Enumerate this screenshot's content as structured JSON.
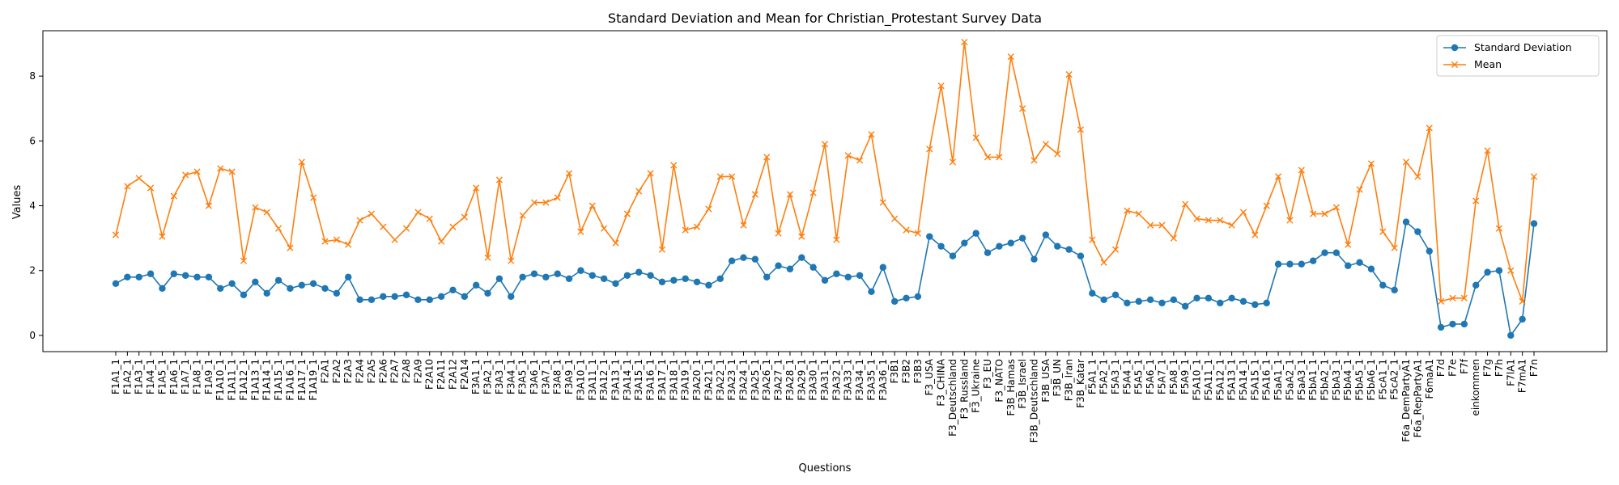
{
  "chart_data": {
    "type": "line",
    "title": "Standard Deviation and Mean for Christian_Protestant Survey Data",
    "xlabel": "Questions",
    "ylabel": "Values",
    "ylim": [
      -0.5,
      9.4
    ],
    "yticks": [
      0,
      2,
      4,
      6,
      8
    ],
    "grid": false,
    "legend_position": "top-right",
    "categories": [
      "F1A1_1",
      "F1A2_1",
      "F1A3_1",
      "F1A4_1",
      "F1A5_1",
      "F1A6_1",
      "F1A7_1",
      "F1A8_1",
      "F1A9_1",
      "F1A10_1",
      "F1A11_1",
      "F1A12_1",
      "F1A13_1",
      "F1A14_1",
      "F1A15_1",
      "F1A16_1",
      "F1A17_1",
      "F1A19_1",
      "F2A1",
      "F2A2",
      "F2A3",
      "F2A4",
      "F2A5",
      "F2A6",
      "F2A7",
      "F2A8",
      "F2A9",
      "F2A10",
      "F2A11",
      "F2A12",
      "F2A14",
      "F3A1_1",
      "F3A2_1",
      "F3A3_1",
      "F3A4_1",
      "F3A5_1",
      "F3A6_1",
      "F3A7_1",
      "F3A8_1",
      "F3A9_1",
      "F3A10_1",
      "F3A11_1",
      "F3A12_1",
      "F3A13_1",
      "F3A14_1",
      "F3A15_1",
      "F3A16_1",
      "F3A17_1",
      "F3A18_1",
      "F3A19_1",
      "F3A20_1",
      "F3A21_1",
      "F3A22_1",
      "F3A23_1",
      "F3A24_1",
      "F3A25_1",
      "F3A26_1",
      "F3A27_1",
      "F3A28_1",
      "F3A29_1",
      "F3A30_1",
      "F3A31_1",
      "F3A32_1",
      "F3A33_1",
      "F3A34_1",
      "F3A35_1",
      "F3A36_1",
      "F3B1",
      "F3B2",
      "F3B3",
      "F3_USA",
      "F3_CHINA",
      "F3_Deutschland",
      "F3_Russland",
      "F3_Ukraine",
      "F3_EU",
      "F3_NATO",
      "F3B_Hamas",
      "F3B_Israel",
      "F3B_Deutschland",
      "F3B_USA",
      "F3B_UN",
      "F3B_Iran",
      "F3B_Katar",
      "F5A1_1",
      "F5A2_1",
      "F5A3_1",
      "F5A4_1",
      "F5A5_1",
      "F5A6_1",
      "F5A7_1",
      "F5A8_1",
      "F5A9_1",
      "F5A10_1",
      "F5A11_1",
      "F5A12_1",
      "F5A13_1",
      "F5A14_1",
      "F5A15_1",
      "F5A16_1",
      "F5aA1_1",
      "F5aA2_1",
      "F5aA3_1",
      "F5bA1_1",
      "F5bA2_1",
      "F5bA3_1",
      "F5bA4_1",
      "F5bA5_1",
      "F5bA6_1",
      "F5cA1_1",
      "F5cA2_1",
      "F6a_DemPartyA1",
      "F6a_RepPartyA1",
      "F6maA1",
      "F7d",
      "F7e",
      "F7f",
      "einkommen",
      "F7g",
      "F7h",
      "F7lA1",
      "F7mA1",
      "F7n"
    ],
    "series": [
      {
        "name": "Standard Deviation",
        "color": "#1f77b4",
        "marker": "circle",
        "values": [
          1.6,
          1.8,
          1.8,
          1.9,
          1.45,
          1.9,
          1.85,
          1.8,
          1.8,
          1.45,
          1.6,
          1.25,
          1.65,
          1.3,
          1.7,
          1.45,
          1.55,
          1.6,
          1.45,
          1.3,
          1.8,
          1.1,
          1.1,
          1.2,
          1.2,
          1.25,
          1.1,
          1.1,
          1.2,
          1.4,
          1.2,
          1.55,
          1.3,
          1.75,
          1.2,
          1.8,
          1.9,
          1.8,
          1.9,
          1.75,
          2.0,
          1.85,
          1.75,
          1.6,
          1.85,
          1.95,
          1.85,
          1.65,
          1.7,
          1.75,
          1.65,
          1.55,
          1.75,
          2.3,
          2.4,
          2.35,
          1.8,
          2.15,
          2.05,
          2.4,
          2.1,
          1.7,
          1.9,
          1.8,
          1.85,
          1.35,
          2.1,
          1.05,
          1.15,
          1.2,
          3.05,
          2.75,
          2.45,
          2.85,
          3.15,
          2.55,
          2.75,
          2.85,
          3.0,
          2.35,
          3.1,
          2.75,
          2.65,
          2.45,
          1.3,
          1.1,
          1.25,
          1.0,
          1.05,
          1.1,
          1.0,
          1.1,
          0.9,
          1.15,
          1.15,
          1.0,
          1.15,
          1.05,
          0.95,
          1.0,
          2.2,
          2.2,
          2.2,
          2.3,
          2.55,
          2.55,
          2.15,
          2.25,
          2.05,
          1.55,
          1.4,
          3.5,
          3.2,
          2.6,
          0.25,
          0.35,
          0.35,
          1.55,
          1.95,
          2.0,
          0.0,
          0.5,
          3.45
        ]
      },
      {
        "name": "Mean",
        "color": "#ff7f0e",
        "marker": "x",
        "values": [
          3.1,
          4.6,
          4.85,
          4.55,
          3.05,
          4.3,
          4.95,
          5.05,
          4.0,
          5.15,
          5.05,
          2.3,
          3.95,
          3.8,
          3.3,
          2.7,
          5.35,
          4.25,
          2.9,
          2.95,
          2.8,
          3.55,
          3.75,
          3.35,
          2.95,
          3.3,
          3.8,
          3.6,
          2.9,
          3.35,
          3.65,
          4.55,
          2.4,
          4.8,
          2.3,
          3.7,
          4.1,
          4.1,
          4.25,
          5.0,
          3.2,
          4.0,
          3.3,
          2.85,
          3.75,
          4.45,
          5.0,
          2.65,
          5.25,
          3.25,
          3.35,
          3.9,
          4.9,
          4.9,
          3.4,
          4.35,
          5.5,
          3.15,
          4.35,
          3.05,
          4.4,
          5.9,
          2.95,
          5.55,
          5.4,
          6.2,
          4.1,
          3.6,
          3.25,
          3.15,
          5.75,
          7.7,
          5.35,
          9.05,
          6.1,
          5.5,
          5.5,
          8.6,
          7.0,
          5.4,
          5.9,
          5.6,
          8.05,
          6.35,
          2.95,
          2.25,
          2.65,
          3.85,
          3.75,
          3.4,
          3.4,
          3.0,
          4.05,
          3.6,
          3.55,
          3.55,
          3.4,
          3.8,
          3.1,
          4.0,
          4.9,
          3.55,
          5.1,
          3.75,
          3.75,
          3.95,
          2.8,
          4.5,
          5.3,
          3.2,
          2.7,
          5.35,
          4.9,
          6.4,
          1.05,
          1.15,
          1.15,
          4.15,
          5.7,
          3.3,
          2.0,
          1.05,
          4.9
        ]
      }
    ]
  }
}
